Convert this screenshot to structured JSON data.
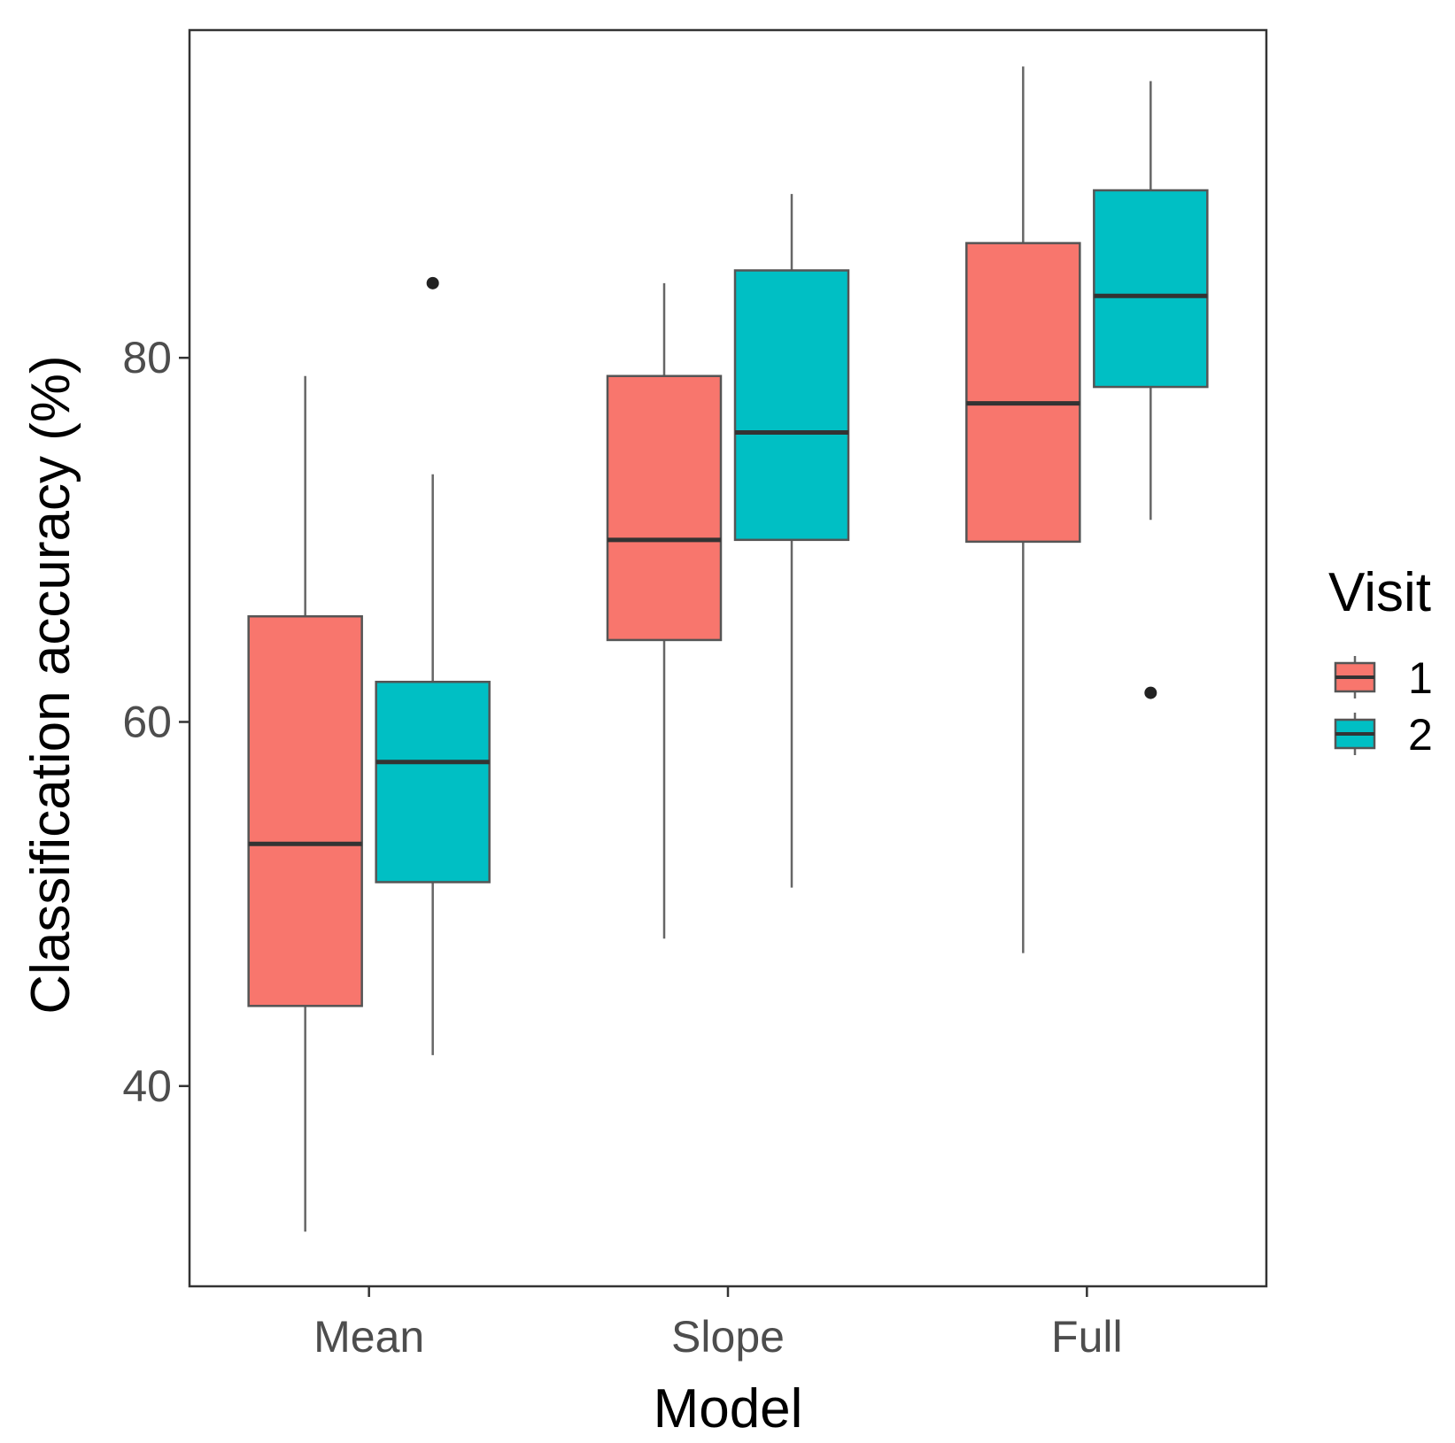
{
  "chart_data": {
    "type": "boxplot",
    "xlabel": "Model",
    "ylabel": "Classification accuracy (%)",
    "categories": [
      "Mean",
      "Slope",
      "Full"
    ],
    "yticks": [
      40,
      60,
      80
    ],
    "ylim": [
      29,
      98
    ],
    "grid": false,
    "legend": {
      "title": "Visit",
      "position": "right"
    },
    "series": [
      {
        "name": "1",
        "color": "#F8766D",
        "boxes": [
          {
            "category": "Mean",
            "whisker_low": 32.0,
            "q1": 44.4,
            "median": 53.3,
            "q3": 65.8,
            "whisker_high": 79.0,
            "outliers": []
          },
          {
            "category": "Slope",
            "whisker_low": 48.1,
            "q1": 64.5,
            "median": 70.0,
            "q3": 79.0,
            "whisker_high": 84.1,
            "outliers": []
          },
          {
            "category": "Full",
            "whisker_low": 47.3,
            "q1": 69.9,
            "median": 77.5,
            "q3": 86.3,
            "whisker_high": 96.0,
            "outliers": []
          }
        ]
      },
      {
        "name": "2",
        "color": "#00BFC4",
        "boxes": [
          {
            "category": "Mean",
            "whisker_low": 41.7,
            "q1": 51.2,
            "median": 57.8,
            "q3": 62.2,
            "whisker_high": 73.6,
            "outliers": [
              84.1
            ]
          },
          {
            "category": "Slope",
            "whisker_low": 50.9,
            "q1": 70.0,
            "median": 75.9,
            "q3": 84.8,
            "whisker_high": 89.0,
            "outliers": []
          },
          {
            "category": "Full",
            "whisker_low": 71.1,
            "q1": 78.4,
            "median": 83.4,
            "q3": 89.2,
            "whisker_high": 95.2,
            "outliers": [
              61.6
            ]
          }
        ]
      }
    ]
  }
}
